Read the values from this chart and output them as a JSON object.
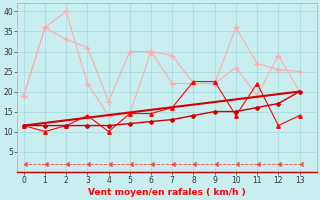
{
  "background_color": "#c8eef0",
  "grid_color": "#aadddd",
  "xlabel": "Vent moyen/en rafales ( km/h )",
  "xlabel_color": "#ff0000",
  "x_ticks": [
    0,
    1,
    2,
    3,
    4,
    5,
    6,
    7,
    8,
    9,
    10,
    11,
    12,
    13
  ],
  "y_ticks": [
    5,
    10,
    15,
    20,
    25,
    30,
    35,
    40
  ],
  "ylim": [
    0,
    42
  ],
  "xlim": [
    -0.3,
    13.8
  ],
  "line_trend": {
    "x": [
      0,
      13
    ],
    "y": [
      11.5,
      20
    ],
    "color": "#cc0000",
    "linewidth": 1.5
  },
  "line_avg": {
    "x": [
      0,
      1,
      2,
      3,
      4,
      5,
      6,
      7,
      8,
      9,
      10,
      11,
      12,
      13
    ],
    "y": [
      11.5,
      11.5,
      11.5,
      11.5,
      11.5,
      12,
      12.5,
      13,
      14,
      15,
      15,
      16,
      17,
      20
    ],
    "color": "#cc0000",
    "linewidth": 1.0,
    "marker": "D",
    "markersize": 2.0
  },
  "line_gust": {
    "x": [
      0,
      1,
      2,
      3,
      4,
      5,
      6,
      7,
      8,
      9,
      10,
      11,
      12,
      13
    ],
    "y": [
      11.5,
      10,
      11.5,
      14,
      10,
      14.5,
      14.5,
      16,
      22.5,
      22.5,
      14,
      22,
      11.5,
      14
    ],
    "color": "#ff0000",
    "linewidth": 0.8,
    "marker": "^",
    "markersize": 2.5
  },
  "line_max1": {
    "x": [
      0,
      1,
      2,
      3,
      4,
      5,
      6,
      7,
      8,
      9,
      10,
      11,
      12,
      13
    ],
    "y": [
      19,
      36,
      33,
      31,
      17.5,
      30,
      30,
      29,
      22,
      22,
      36,
      27,
      25.5,
      25
    ],
    "color": "#ffaaaa",
    "linewidth": 0.8,
    "marker": "+",
    "markersize": 4
  },
  "line_max2": {
    "x": [
      0,
      1,
      2,
      3,
      4,
      5,
      6,
      7,
      8,
      9,
      10,
      11,
      12,
      13
    ],
    "y": [
      19,
      36,
      40,
      22,
      14,
      14.5,
      30,
      22,
      22,
      22,
      26,
      19,
      29,
      20
    ],
    "color": "#ffaaaa",
    "linewidth": 0.8,
    "marker": "+",
    "markersize": 4
  },
  "line_dashed": {
    "x": [
      0,
      1,
      2,
      3,
      4,
      5,
      6,
      7,
      8,
      9,
      10,
      11,
      12,
      13
    ],
    "y": [
      1.8,
      1.8,
      1.8,
      1.8,
      1.8,
      1.8,
      1.8,
      1.8,
      1.8,
      1.8,
      1.8,
      1.8,
      1.8,
      1.8
    ],
    "color": "#ff4444",
    "linewidth": 0.6,
    "linestyle": "--",
    "marker": 4,
    "markersize": 3
  }
}
